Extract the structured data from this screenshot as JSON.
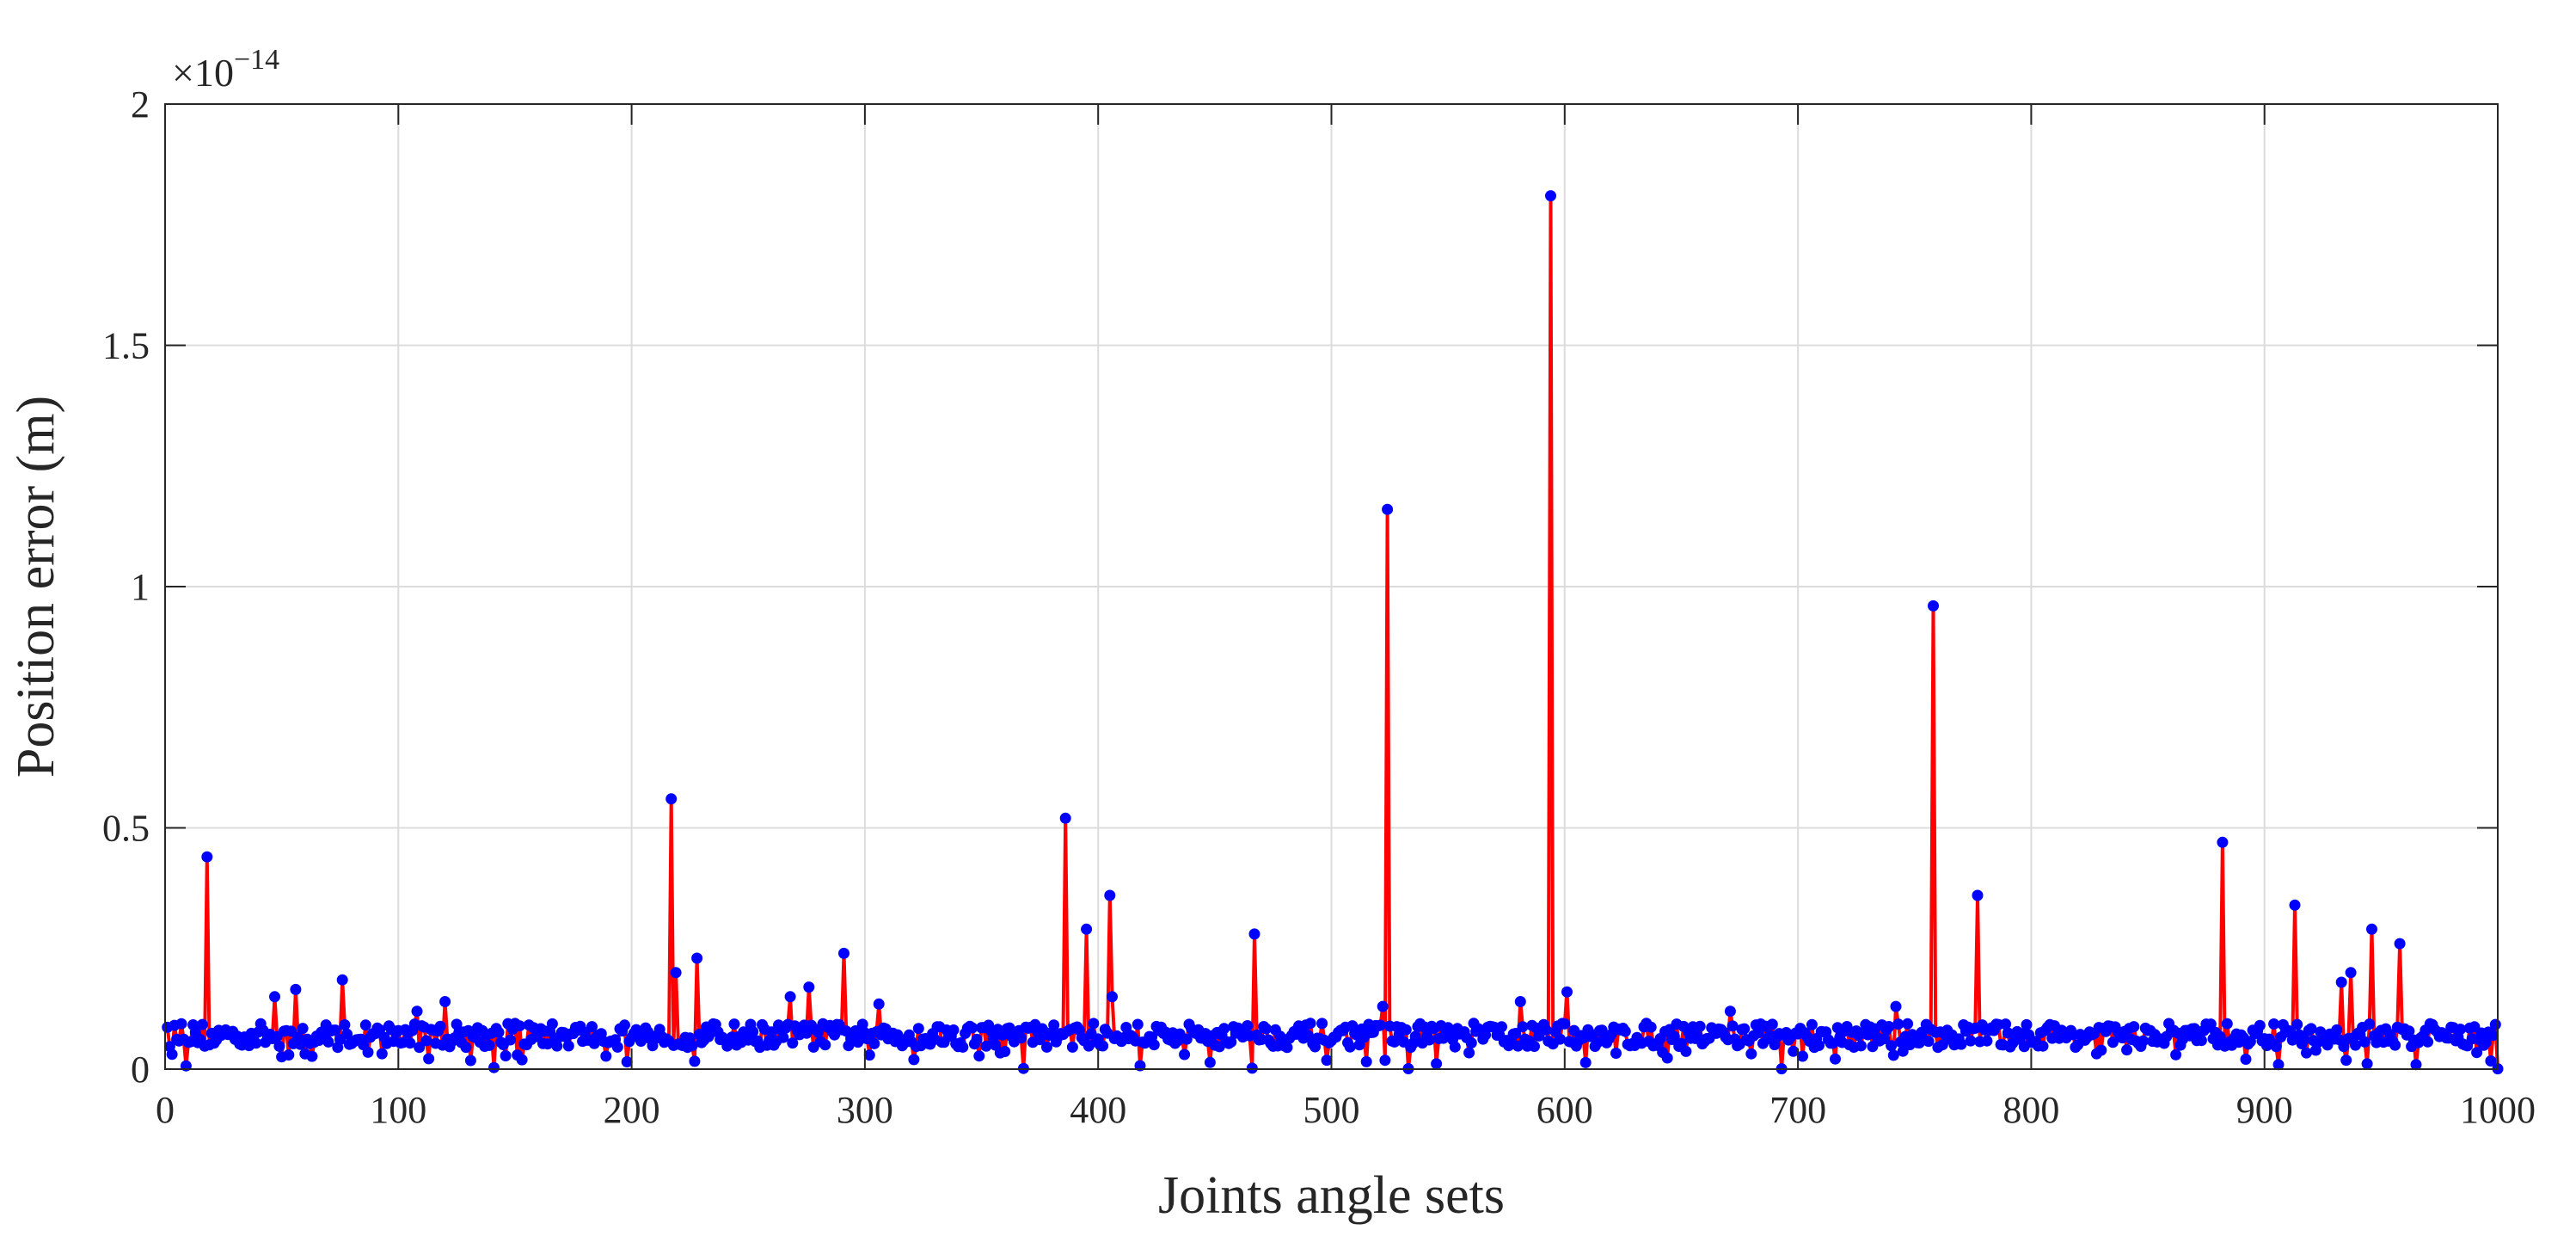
{
  "chart_data": {
    "type": "line",
    "xlabel": "Joints angle sets",
    "ylabel": "Position error (m)",
    "y_exponent_label": {
      "base": "×10",
      "exponent": "−14"
    },
    "xlim": [
      0,
      1000
    ],
    "ylim": [
      0,
      2
    ],
    "y_scale_factor": 1e-14,
    "grid": true,
    "x_ticks": [
      0,
      100,
      200,
      300,
      400,
      500,
      600,
      700,
      800,
      900,
      1000
    ],
    "x_tick_labels": [
      "0",
      "100",
      "200",
      "300",
      "400",
      "500",
      "600",
      "700",
      "800",
      "900",
      "1000"
    ],
    "y_ticks": [
      0,
      0.5,
      1,
      1.5,
      2
    ],
    "y_tick_labels": [
      "0",
      "0.5",
      "1",
      "1.5",
      "2"
    ],
    "series": [
      {
        "line_color": "#ff0000",
        "marker_color": "#0000ff",
        "marker": "filled-circle",
        "points": 1000,
        "baseline_typical": 0.07,
        "baseline_range": [
          0.0,
          0.1
        ],
        "peaks": [
          {
            "x": 18,
            "y": 0.44
          },
          {
            "x": 47,
            "y": 0.15
          },
          {
            "x": 56,
            "y": 0.165
          },
          {
            "x": 76,
            "y": 0.185
          },
          {
            "x": 108,
            "y": 0.12
          },
          {
            "x": 120,
            "y": 0.14
          },
          {
            "x": 217,
            "y": 0.56
          },
          {
            "x": 219,
            "y": 0.2
          },
          {
            "x": 228,
            "y": 0.23
          },
          {
            "x": 268,
            "y": 0.15
          },
          {
            "x": 276,
            "y": 0.17
          },
          {
            "x": 291,
            "y": 0.24
          },
          {
            "x": 306,
            "y": 0.135
          },
          {
            "x": 386,
            "y": 0.52
          },
          {
            "x": 395,
            "y": 0.29
          },
          {
            "x": 405,
            "y": 0.36
          },
          {
            "x": 406,
            "y": 0.15
          },
          {
            "x": 467,
            "y": 0.28
          },
          {
            "x": 524,
            "y": 1.16
          },
          {
            "x": 522,
            "y": 0.13
          },
          {
            "x": 581,
            "y": 0.14
          },
          {
            "x": 594,
            "y": 1.81
          },
          {
            "x": 601,
            "y": 0.16
          },
          {
            "x": 671,
            "y": 0.12
          },
          {
            "x": 742,
            "y": 0.13
          },
          {
            "x": 758,
            "y": 0.96
          },
          {
            "x": 777,
            "y": 0.36
          },
          {
            "x": 882,
            "y": 0.47
          },
          {
            "x": 913,
            "y": 0.34
          },
          {
            "x": 933,
            "y": 0.18
          },
          {
            "x": 937,
            "y": 0.2
          },
          {
            "x": 946,
            "y": 0.29
          },
          {
            "x": 958,
            "y": 0.26
          }
        ]
      }
    ]
  }
}
